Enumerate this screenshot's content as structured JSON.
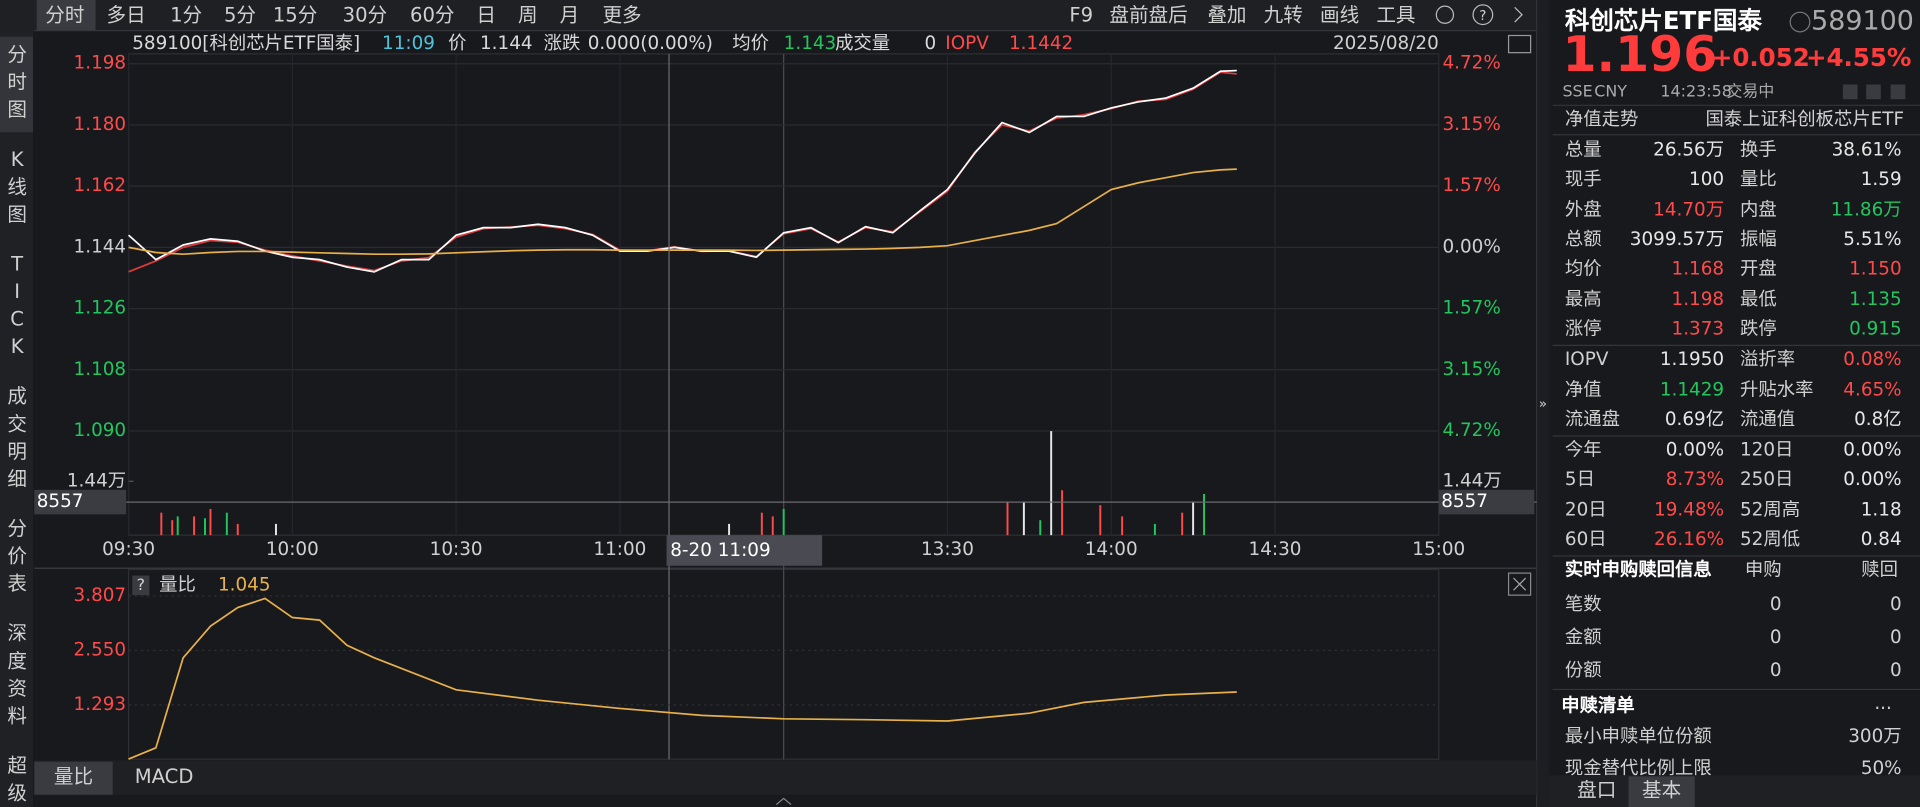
{
  "toolbar": {
    "periods": [
      "分时",
      "多日",
      "1分",
      "5分",
      "15分",
      "30分",
      "60分",
      "日",
      "周",
      "月",
      "更多"
    ],
    "tools": [
      "F9",
      "盘前盘后",
      "叠加",
      "九转",
      "画线",
      "工具"
    ]
  },
  "sidebar": [
    "分时图",
    "K线图",
    "TICK",
    "成交明细",
    "分价表",
    "深度资料",
    "超级"
  ],
  "header": {
    "code": "589100[科创芯片ETF国泰]",
    "time": "11:09",
    "price_label": "价",
    "price": "1.144",
    "change_label": "涨跌",
    "change": "0.000(0.00%)",
    "avg_label": "均价",
    "avg": "1.143",
    "vol_label": "成交量",
    "vol": "0",
    "iopv_label": "IOPV",
    "iopv": "1.1442",
    "date": "2025/08/20"
  },
  "price_chart": {
    "ylim": [
      1.0781,
      1.2009
    ],
    "yticks": [
      {
        "value": 1.198,
        "label": "1.198",
        "pct": "4.72%",
        "color": "#ff4a4a"
      },
      {
        "value": 1.18,
        "label": "1.180",
        "pct": "3.15%",
        "color": "#ff4a4a"
      },
      {
        "value": 1.162,
        "label": "1.162",
        "pct": "1.57%",
        "color": "#ff4a4a"
      },
      {
        "value": 1.144,
        "label": "1.144",
        "pct": "0.00%",
        "color": "#cfcfcf"
      },
      {
        "value": 1.126,
        "label": "1.126",
        "pct": "1.57%",
        "color": "#22c55e"
      },
      {
        "value": 1.108,
        "label": "1.108",
        "pct": "3.15%",
        "color": "#22c55e"
      },
      {
        "value": 1.09,
        "label": "1.090",
        "pct": "4.72%",
        "color": "#22c55e"
      }
    ],
    "xlim": [
      "09:30",
      "15:00"
    ],
    "xticks": [
      "09:30",
      "10:00",
      "10:30",
      "11:00",
      "13:30",
      "14:00",
      "14:30",
      "15:00"
    ],
    "series": [
      {
        "name": "IOPV",
        "color": "#e03a3a",
        "x": [
          "09:30",
          "09:35",
          "09:40",
          "09:45",
          "09:50",
          "09:55",
          "10:00",
          "10:05",
          "10:10",
          "10:15",
          "10:20",
          "10:25",
          "10:30",
          "10:35",
          "10:40",
          "10:45",
          "10:50",
          "10:55",
          "11:00",
          "11:05",
          "11:10",
          "11:15",
          "11:20",
          "11:25",
          "11:30",
          "13:05",
          "13:10",
          "13:15",
          "13:20",
          "13:25",
          "13:30",
          "13:35",
          "13:40",
          "13:45",
          "13:50",
          "13:55",
          "14:00",
          "14:05",
          "14:10",
          "14:15",
          "14:20",
          "14:23"
        ],
        "values": [
          1.1368,
          1.14,
          1.144,
          1.146,
          1.1455,
          1.1432,
          1.1415,
          1.14,
          1.1385,
          1.1372,
          1.14,
          1.141,
          1.147,
          1.1495,
          1.15,
          1.1505,
          1.1495,
          1.1478,
          1.1432,
          1.143,
          1.1442,
          1.1428,
          1.143,
          1.1413,
          1.148,
          1.1495,
          1.1456,
          1.1498,
          1.1486,
          1.1545,
          1.1605,
          1.172,
          1.18,
          1.1782,
          1.182,
          1.183,
          1.1848,
          1.187,
          1.1875,
          1.1905,
          1.1955,
          1.195
        ]
      },
      {
        "name": "价",
        "color": "#ffffff",
        "x": [
          "09:30",
          "09:35",
          "09:40",
          "09:45",
          "09:50",
          "09:55",
          "10:00",
          "10:05",
          "10:10",
          "10:15",
          "10:20",
          "10:25",
          "10:30",
          "10:35",
          "10:40",
          "10:45",
          "10:50",
          "10:55",
          "11:00",
          "11:05",
          "11:10",
          "11:15",
          "11:20",
          "11:25",
          "11:30",
          "13:05",
          "13:10",
          "13:15",
          "13:20",
          "13:25",
          "13:30",
          "13:35",
          "13:40",
          "13:45",
          "13:50",
          "13:55",
          "14:00",
          "14:05",
          "14:10",
          "14:15",
          "14:20",
          "14:23"
        ],
        "values": [
          1.1476,
          1.1404,
          1.1447,
          1.1465,
          1.1458,
          1.1429,
          1.1411,
          1.1404,
          1.1382,
          1.1368,
          1.1404,
          1.1404,
          1.1476,
          1.1498,
          1.1498,
          1.1508,
          1.1498,
          1.1476,
          1.1429,
          1.1429,
          1.144,
          1.1429,
          1.1429,
          1.1411,
          1.1483,
          1.1498,
          1.1454,
          1.1501,
          1.1483,
          1.1548,
          1.161,
          1.1717,
          1.1807,
          1.1778,
          1.1825,
          1.1825,
          1.185,
          1.1868,
          1.1879,
          1.1908,
          1.1958,
          1.196
        ]
      },
      {
        "name": "均价",
        "color": "#e8b04a",
        "x": [
          "09:30",
          "09:35",
          "09:40",
          "09:45",
          "09:50",
          "09:55",
          "10:00",
          "10:05",
          "10:10",
          "10:15",
          "10:20",
          "10:25",
          "10:30",
          "10:35",
          "10:40",
          "10:45",
          "10:50",
          "10:55",
          "11:00",
          "11:05",
          "11:10",
          "11:15",
          "11:20",
          "11:25",
          "11:30",
          "13:05",
          "13:10",
          "13:15",
          "13:20",
          "13:25",
          "13:30",
          "13:35",
          "13:40",
          "13:45",
          "13:50",
          "13:55",
          "14:00",
          "14:05",
          "14:10",
          "14:15",
          "14:20",
          "14:23"
        ],
        "values": [
          1.144,
          1.1425,
          1.142,
          1.1425,
          1.1428,
          1.1428,
          1.1426,
          1.1424,
          1.1422,
          1.142,
          1.142,
          1.1421,
          1.1424,
          1.1427,
          1.143,
          1.1432,
          1.1433,
          1.1433,
          1.1432,
          1.1432,
          1.1432,
          1.1432,
          1.1432,
          1.1431,
          1.1432,
          1.1433,
          1.1434,
          1.1435,
          1.1437,
          1.144,
          1.1445,
          1.146,
          1.1475,
          1.149,
          1.151,
          1.156,
          1.161,
          1.163,
          1.1645,
          1.166,
          1.1668,
          1.167
        ]
      }
    ],
    "volume": {
      "ylim": [
        0,
        14400
      ],
      "yticks": [
        {
          "value": 14400,
          "label": "1.44万"
        }
      ],
      "series": [
        {
          "color": "#ff4a4a",
          "x": [
            "09:36",
            "09:38",
            "09:42",
            "09:45",
            "09:50",
            "11:26",
            "11:28",
            "13:41",
            "13:51",
            "13:58",
            "14:02",
            "14:13"
          ],
          "values": [
            6000,
            4000,
            5000,
            7000,
            3000,
            6000,
            5000,
            9000,
            12000,
            8000,
            5000,
            6000
          ]
        },
        {
          "color": "#22c55e",
          "x": [
            "09:39",
            "09:44",
            "09:48",
            "11:30",
            "13:47",
            "14:08",
            "14:17"
          ],
          "values": [
            5000,
            4500,
            6000,
            7000,
            4000,
            3000,
            11000
          ]
        },
        {
          "color": "#e6e6e6",
          "x": [
            "09:57",
            "11:20",
            "13:44",
            "13:49",
            "14:15"
          ],
          "values": [
            3000,
            3000,
            9000,
            27800,
            9000
          ]
        }
      ]
    },
    "cursor_volume": "8557",
    "cursor_label": "8-20 11:09"
  },
  "lower_chart": {
    "help": "?",
    "name": "量比",
    "value": "1.045",
    "ylim": [
      0.036,
      4.421
    ],
    "yticks": [
      3.807,
      {
        "value": 2.55,
        "label": "2.550"
      },
      1.293
    ],
    "series": [
      {
        "color": "#e8b04a",
        "x": [
          "09:30",
          "09:35",
          "09:40",
          "09:45",
          "09:50",
          "09:55",
          "10:00",
          "10:05",
          "10:10",
          "10:15",
          "10:30",
          "10:45",
          "11:00",
          "11:15",
          "11:30",
          "13:15",
          "13:30",
          "13:45",
          "13:55",
          "14:10",
          "14:23"
        ],
        "values": [
          0.04,
          0.3,
          2.38,
          3.11,
          3.54,
          3.75,
          3.31,
          3.25,
          2.67,
          2.38,
          1.64,
          1.4,
          1.21,
          1.05,
          0.97,
          0.95,
          0.92,
          1.1,
          1.35,
          1.52,
          1.59
        ]
      }
    ],
    "tabs": [
      "量比",
      "MACD"
    ]
  },
  "quote": {
    "name": "科创芯片ETF国泰",
    "code": "589100",
    "price": "1.196",
    "change": "+0.052",
    "pct": "+4.55%",
    "exchange": "SSE",
    "currency": "CNY",
    "time": "14:23:58",
    "status": "交易中",
    "nav_trend": "净值走势",
    "fund_name": "国泰上证科创板芯片ETF",
    "rows": [
      [
        "总量",
        "26.56万",
        "换手",
        "38.61%"
      ],
      [
        "现手",
        "100",
        "量比",
        "1.59"
      ],
      [
        "外盘",
        "14.70万",
        "内盘",
        "11.86万"
      ],
      [
        "总额",
        "3099.57万",
        "振幅",
        "5.51%"
      ],
      [
        "均价",
        "1.168",
        "开盘",
        "1.150"
      ],
      [
        "最高",
        "1.198",
        "最低",
        "1.135"
      ],
      [
        "涨停",
        "1.373",
        "跌停",
        "0.915"
      ],
      [
        "IOPV",
        "1.1950",
        "溢折率",
        "0.08%"
      ],
      [
        "净值",
        "1.1429",
        "升贴水率",
        "4.65%"
      ],
      [
        "流通盘",
        "0.69亿",
        "流通值",
        "0.8亿"
      ],
      [
        "今年",
        "0.00%",
        "120日",
        "0.00%"
      ],
      [
        "5日",
        "8.73%",
        "250日",
        "0.00%"
      ],
      [
        "20日",
        "19.48%",
        "52周高",
        "1.18"
      ],
      [
        "60日",
        "26.16%",
        "52周低",
        "0.84"
      ]
    ],
    "row_colors": [
      [
        "#e6e6e6",
        "#e6e6e6"
      ],
      [
        "#e6e6e6",
        "#e6e6e6"
      ],
      [
        "#ff4a4a",
        "#22c55e"
      ],
      [
        "#e6e6e6",
        "#e6e6e6"
      ],
      [
        "#ff4a4a",
        "#ff4a4a"
      ],
      [
        "#ff4a4a",
        "#22c55e"
      ],
      [
        "#ff4a4a",
        "#22c55e"
      ],
      [
        "#e6e6e6",
        "#ff4a4a"
      ],
      [
        "#22c55e",
        "#ff4a4a"
      ],
      [
        "#e6e6e6",
        "#e6e6e6"
      ],
      [
        "#e6e6e6",
        "#e6e6e6"
      ],
      [
        "#ff4a4a",
        "#e6e6e6"
      ],
      [
        "#ff4a4a",
        "#e6e6e6"
      ],
      [
        "#ff4a4a",
        "#e6e6e6"
      ]
    ],
    "flow": {
      "title": "实时申购赎回信息",
      "cols": [
        "申购",
        "赎回"
      ],
      "rows": [
        [
          "笔数",
          "0",
          "0"
        ],
        [
          "金额",
          "0",
          "0"
        ],
        [
          "份额",
          "0",
          "0"
        ]
      ]
    },
    "list": {
      "title": "申赎清单",
      "more": "...",
      "rows": [
        [
          "最小申赎单位份额",
          "300万"
        ],
        [
          "现金替代比例上限",
          "50%"
        ]
      ]
    },
    "tabs": [
      "盘口",
      "基本"
    ]
  }
}
